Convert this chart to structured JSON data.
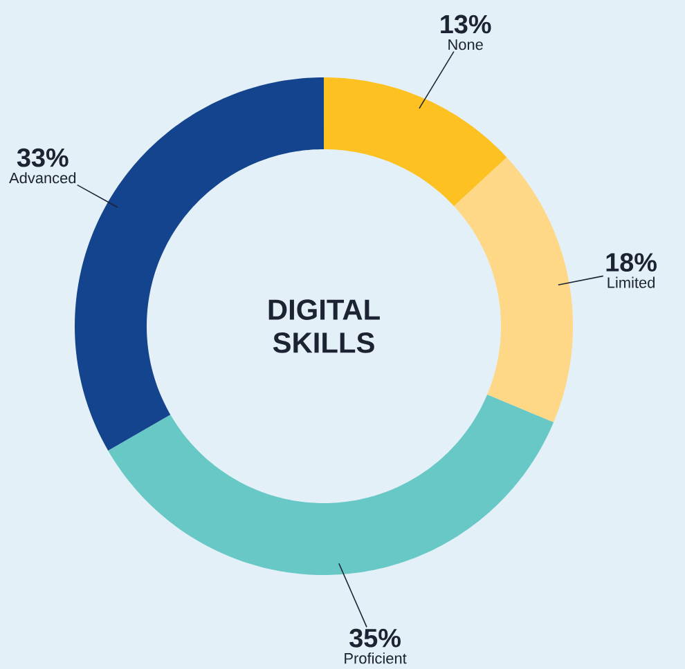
{
  "chart_data": {
    "type": "donut",
    "title": "DIGITAL SKILLS",
    "categories": [
      "None",
      "Limited",
      "Proficient",
      "Advanced"
    ],
    "values": [
      13,
      18,
      35,
      33
    ],
    "value_labels": [
      "13%",
      "18%",
      "35%",
      "33%"
    ],
    "colors": [
      "#fdc221",
      "#fed886",
      "#67c8c6",
      "#15448e"
    ]
  }
}
